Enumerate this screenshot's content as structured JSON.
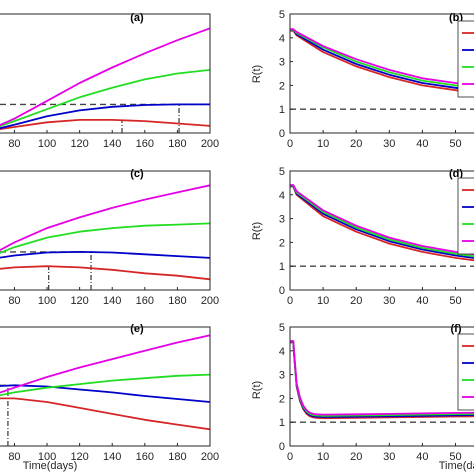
{
  "panels": [
    {
      "label": "(a)",
      "xlabel": "",
      "ylabel": ""
    },
    {
      "label": "(b)",
      "xlabel": "",
      "ylabel": "R(t)"
    },
    {
      "label": "(c)",
      "xlabel": "",
      "ylabel": ""
    },
    {
      "label": "(d)",
      "xlabel": "",
      "ylabel": "R(t)"
    },
    {
      "label": "(e)",
      "xlabel": "Time(days)",
      "ylabel": ""
    },
    {
      "label": "(f)",
      "xlabel": "Time(days)",
      "ylabel": "R(t)"
    }
  ],
  "colors": {
    "red": "#d62728",
    "blue": "#0000c8",
    "green": "#22dd22",
    "magenta": "#e600e6",
    "axis": "#262626",
    "ref": "#444444"
  },
  "chart_data": [
    {
      "type": "line",
      "title": "(a)",
      "xlabel": "",
      "ylabel": "",
      "xlim": [
        65,
        200
      ],
      "ylim": [
        0,
        1
      ],
      "x_ticks": [
        80,
        100,
        120,
        140,
        160,
        180,
        200
      ],
      "y_ticks": [],
      "series": [
        {
          "color": "red",
          "x": [
            65,
            80,
            100,
            120,
            140,
            160,
            180,
            200
          ],
          "y": [
            0.02,
            0.05,
            0.09,
            0.11,
            0.11,
            0.1,
            0.08,
            0.06
          ]
        },
        {
          "color": "blue",
          "x": [
            65,
            80,
            100,
            120,
            140,
            160,
            180,
            200
          ],
          "y": [
            0.02,
            0.07,
            0.14,
            0.19,
            0.22,
            0.235,
            0.24,
            0.24
          ]
        },
        {
          "color": "green",
          "x": [
            65,
            80,
            100,
            120,
            140,
            160,
            180,
            200
          ],
          "y": [
            0.03,
            0.1,
            0.2,
            0.3,
            0.38,
            0.45,
            0.5,
            0.53
          ]
        },
        {
          "color": "magenta",
          "x": [
            65,
            80,
            100,
            120,
            140,
            160,
            180,
            200
          ],
          "y": [
            0.03,
            0.12,
            0.27,
            0.42,
            0.55,
            0.67,
            0.78,
            0.88
          ]
        }
      ],
      "reference_lines": [
        {
          "kind": "h",
          "y": 0.24,
          "x0": 65,
          "x1": 200
        },
        {
          "kind": "v",
          "x": 146,
          "y0": 0,
          "y1": 0.11
        },
        {
          "kind": "v",
          "x": 181,
          "y0": 0,
          "y1": 0.24
        }
      ]
    },
    {
      "type": "line",
      "title": "(b)",
      "xlabel": "",
      "ylabel": "R(t)",
      "xlim": [
        0,
        58
      ],
      "ylim": [
        0,
        5
      ],
      "x_ticks": [
        0,
        10,
        20,
        30,
        40,
        50
      ],
      "y_ticks": [
        0,
        1,
        2,
        3,
        4,
        5
      ],
      "series": [
        {
          "color": "red",
          "x": [
            0,
            1,
            2,
            10,
            20,
            30,
            40,
            50,
            58
          ],
          "y": [
            4.3,
            4.3,
            4.1,
            3.4,
            2.8,
            2.35,
            2.0,
            1.8,
            1.65
          ]
        },
        {
          "color": "blue",
          "x": [
            0,
            1,
            2,
            10,
            20,
            30,
            40,
            50,
            58
          ],
          "y": [
            4.32,
            4.32,
            4.15,
            3.5,
            2.9,
            2.45,
            2.1,
            1.9,
            1.75
          ]
        },
        {
          "color": "green",
          "x": [
            0,
            1,
            2,
            10,
            20,
            30,
            40,
            50,
            58
          ],
          "y": [
            4.34,
            4.34,
            4.2,
            3.6,
            3.0,
            2.55,
            2.2,
            2.0,
            1.85
          ]
        },
        {
          "color": "magenta",
          "x": [
            0,
            1,
            2,
            10,
            20,
            30,
            40,
            50,
            58
          ],
          "y": [
            4.36,
            4.36,
            4.25,
            3.65,
            3.1,
            2.65,
            2.3,
            2.1,
            1.95
          ]
        }
      ],
      "reference_lines": [
        {
          "kind": "h",
          "y": 1,
          "x0": 0,
          "x1": 58
        }
      ],
      "legend": "top-right"
    },
    {
      "type": "line",
      "title": "(c)",
      "xlabel": "",
      "ylabel": "",
      "xlim": [
        65,
        200
      ],
      "ylim": [
        0,
        1
      ],
      "x_ticks": [
        80,
        100,
        120,
        140,
        160,
        180,
        200
      ],
      "y_ticks": [],
      "series": [
        {
          "color": "red",
          "x": [
            65,
            80,
            100,
            120,
            140,
            160,
            180,
            200
          ],
          "y": [
            0.17,
            0.19,
            0.2,
            0.19,
            0.17,
            0.14,
            0.12,
            0.09
          ]
        },
        {
          "color": "blue",
          "x": [
            65,
            80,
            100,
            120,
            140,
            160,
            180,
            200
          ],
          "y": [
            0.26,
            0.29,
            0.315,
            0.32,
            0.315,
            0.3,
            0.285,
            0.27
          ]
        },
        {
          "color": "green",
          "x": [
            65,
            80,
            100,
            120,
            140,
            160,
            180,
            200
          ],
          "y": [
            0.28,
            0.36,
            0.44,
            0.49,
            0.52,
            0.54,
            0.55,
            0.56
          ]
        },
        {
          "color": "magenta",
          "x": [
            65,
            80,
            100,
            120,
            140,
            160,
            180,
            200
          ],
          "y": [
            0.29,
            0.4,
            0.52,
            0.61,
            0.69,
            0.76,
            0.82,
            0.88
          ]
        }
      ],
      "reference_lines": [
        {
          "kind": "h",
          "y": 0.32,
          "x0": 65,
          "x1": 128
        },
        {
          "kind": "v",
          "x": 101,
          "y0": 0,
          "y1": 0.2
        },
        {
          "kind": "v",
          "x": 127,
          "y0": 0,
          "y1": 0.32
        }
      ]
    },
    {
      "type": "line",
      "title": "(d)",
      "xlabel": "",
      "ylabel": "R(t)",
      "xlim": [
        0,
        58
      ],
      "ylim": [
        0,
        5
      ],
      "x_ticks": [
        0,
        10,
        20,
        30,
        40,
        50
      ],
      "y_ticks": [
        0,
        1,
        2,
        3,
        4,
        5
      ],
      "series": [
        {
          "color": "red",
          "x": [
            0,
            1,
            2,
            10,
            20,
            30,
            40,
            50,
            58
          ],
          "y": [
            4.35,
            4.35,
            4.0,
            3.1,
            2.45,
            1.95,
            1.6,
            1.35,
            1.2
          ]
        },
        {
          "color": "blue",
          "x": [
            0,
            1,
            2,
            10,
            20,
            30,
            40,
            50,
            58
          ],
          "y": [
            4.37,
            4.37,
            4.05,
            3.2,
            2.55,
            2.05,
            1.7,
            1.45,
            1.3
          ]
        },
        {
          "color": "green",
          "x": [
            0,
            1,
            2,
            10,
            20,
            30,
            40,
            50,
            58
          ],
          "y": [
            4.39,
            4.39,
            4.1,
            3.28,
            2.62,
            2.12,
            1.77,
            1.52,
            1.37
          ]
        },
        {
          "color": "magenta",
          "x": [
            0,
            1,
            2,
            10,
            20,
            30,
            40,
            50,
            58
          ],
          "y": [
            4.41,
            4.41,
            4.15,
            3.35,
            2.7,
            2.2,
            1.85,
            1.6,
            1.45
          ]
        }
      ],
      "reference_lines": [
        {
          "kind": "h",
          "y": 1,
          "x0": 0,
          "x1": 58
        }
      ],
      "legend": "top-right"
    },
    {
      "type": "line",
      "title": "(e)",
      "xlabel": "Time(days)",
      "ylabel": "",
      "xlim": [
        65,
        200
      ],
      "ylim": [
        0,
        1
      ],
      "x_ticks": [
        80,
        100,
        120,
        140,
        160,
        180,
        200
      ],
      "y_ticks": [],
      "series": [
        {
          "color": "red",
          "x": [
            65,
            80,
            100,
            120,
            140,
            160,
            180,
            200
          ],
          "y": [
            0.4,
            0.4,
            0.37,
            0.32,
            0.27,
            0.22,
            0.18,
            0.14
          ]
        },
        {
          "color": "blue",
          "x": [
            65,
            80,
            100,
            120,
            140,
            160,
            180,
            200
          ],
          "y": [
            0.5,
            0.51,
            0.5,
            0.475,
            0.45,
            0.42,
            0.395,
            0.37
          ]
        },
        {
          "color": "green",
          "x": [
            65,
            80,
            100,
            120,
            140,
            160,
            180,
            200
          ],
          "y": [
            0.41,
            0.45,
            0.49,
            0.52,
            0.55,
            0.57,
            0.59,
            0.6
          ]
        },
        {
          "color": "magenta",
          "x": [
            65,
            80,
            100,
            120,
            140,
            160,
            180,
            200
          ],
          "y": [
            0.42,
            0.49,
            0.58,
            0.66,
            0.73,
            0.8,
            0.87,
            0.93
          ]
        }
      ],
      "reference_lines": [
        {
          "kind": "h",
          "y": 0.51,
          "x0": 65,
          "x1": 76
        },
        {
          "kind": "v",
          "x": 76,
          "y0": 0,
          "y1": 0.51
        }
      ]
    },
    {
      "type": "line",
      "title": "(f)",
      "xlabel": "Time(days)",
      "ylabel": "R(t)",
      "xlim": [
        0,
        58
      ],
      "ylim": [
        0,
        5
      ],
      "x_ticks": [
        0,
        10,
        20,
        30,
        40,
        50
      ],
      "y_ticks": [
        0,
        1,
        2,
        3,
        4,
        5
      ],
      "series": [
        {
          "color": "red",
          "x": [
            0,
            1,
            1.3,
            2,
            3,
            4,
            5,
            6,
            7,
            8,
            10,
            20,
            30,
            40,
            50,
            58
          ],
          "y": [
            4.35,
            4.35,
            3.7,
            2.5,
            1.9,
            1.55,
            1.35,
            1.25,
            1.2,
            1.18,
            1.17,
            1.18,
            1.2,
            1.22,
            1.24,
            1.25
          ]
        },
        {
          "color": "blue",
          "x": [
            0,
            1,
            1.3,
            2,
            3,
            4,
            5,
            6,
            7,
            8,
            10,
            20,
            30,
            40,
            50,
            58
          ],
          "y": [
            4.37,
            4.37,
            3.75,
            2.55,
            1.95,
            1.6,
            1.4,
            1.3,
            1.25,
            1.23,
            1.22,
            1.23,
            1.25,
            1.27,
            1.29,
            1.3
          ]
        },
        {
          "color": "green",
          "x": [
            0,
            1,
            1.3,
            2,
            3,
            4,
            5,
            6,
            7,
            8,
            10,
            20,
            30,
            40,
            50,
            58
          ],
          "y": [
            4.39,
            4.39,
            3.8,
            2.6,
            2.0,
            1.65,
            1.45,
            1.35,
            1.3,
            1.28,
            1.27,
            1.28,
            1.3,
            1.32,
            1.34,
            1.35
          ]
        },
        {
          "color": "magenta",
          "x": [
            0,
            1,
            1.3,
            2,
            3,
            4,
            5,
            6,
            7,
            8,
            10,
            20,
            30,
            40,
            50,
            58
          ],
          "y": [
            4.41,
            4.41,
            3.85,
            2.65,
            2.05,
            1.7,
            1.5,
            1.4,
            1.35,
            1.33,
            1.32,
            1.33,
            1.35,
            1.37,
            1.39,
            1.4
          ]
        }
      ],
      "reference_lines": [
        {
          "kind": "h",
          "y": 1,
          "x0": 0,
          "x1": 58
        }
      ],
      "legend": "top-right"
    }
  ]
}
